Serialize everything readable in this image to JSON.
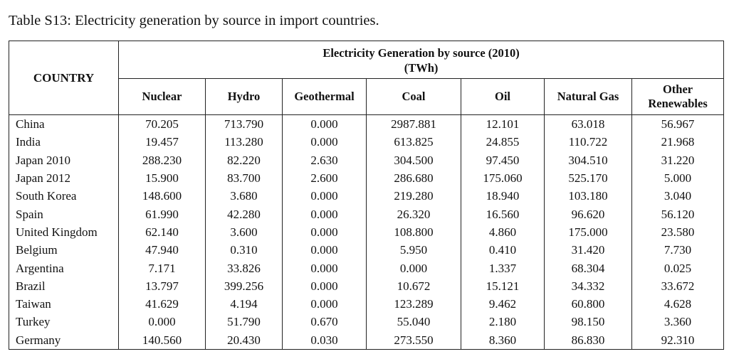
{
  "caption": "Table S13: Electricity generation by source in import countries.",
  "header": {
    "country": "COUNTRY",
    "group_title": "Electricity Generation by source (2010)",
    "unit": "(TWh)",
    "columns": [
      "Nuclear",
      "Hydro",
      "Geothermal",
      "Coal",
      "Oil",
      "Natural Gas",
      "Other Renewables"
    ]
  },
  "rows": [
    {
      "country": "China",
      "values": [
        "70.205",
        "713.790",
        "0.000",
        "2987.881",
        "12.101",
        "63.018",
        "56.967"
      ]
    },
    {
      "country": "India",
      "values": [
        "19.457",
        "113.280",
        "0.000",
        "613.825",
        "24.855",
        "110.722",
        "21.968"
      ]
    },
    {
      "country": "Japan 2010",
      "values": [
        "288.230",
        "82.220",
        "2.630",
        "304.500",
        "97.450",
        "304.510",
        "31.220"
      ]
    },
    {
      "country": "Japan 2012",
      "values": [
        "15.900",
        "83.700",
        "2.600",
        "286.680",
        "175.060",
        "525.170",
        "5.000"
      ]
    },
    {
      "country": "South Korea",
      "values": [
        "148.600",
        "3.680",
        "0.000",
        "219.280",
        "18.940",
        "103.180",
        "3.040"
      ]
    },
    {
      "country": "Spain",
      "values": [
        "61.990",
        "42.280",
        "0.000",
        "26.320",
        "16.560",
        "96.620",
        "56.120"
      ]
    },
    {
      "country": "United Kingdom",
      "values": [
        "62.140",
        "3.600",
        "0.000",
        "108.800",
        "4.860",
        "175.000",
        "23.580"
      ]
    },
    {
      "country": "Belgium",
      "values": [
        "47.940",
        "0.310",
        "0.000",
        "5.950",
        "0.410",
        "31.420",
        "7.730"
      ]
    },
    {
      "country": "Argentina",
      "values": [
        "7.171",
        "33.826",
        "0.000",
        "0.000",
        "1.337",
        "68.304",
        "0.025"
      ]
    },
    {
      "country": "Brazil",
      "values": [
        "13.797",
        "399.256",
        "0.000",
        "10.672",
        "15.121",
        "34.332",
        "33.672"
      ]
    },
    {
      "country": "Taiwan",
      "values": [
        "41.629",
        "4.194",
        "0.000",
        "123.289",
        "9.462",
        "60.800",
        "4.628"
      ]
    },
    {
      "country": "Turkey",
      "values": [
        "0.000",
        "51.790",
        "0.670",
        "55.040",
        "2.180",
        "98.150",
        "3.360"
      ]
    },
    {
      "country": "Germany",
      "values": [
        "140.560",
        "20.430",
        "0.030",
        "273.550",
        "8.360",
        "86.830",
        "92.310"
      ]
    }
  ]
}
